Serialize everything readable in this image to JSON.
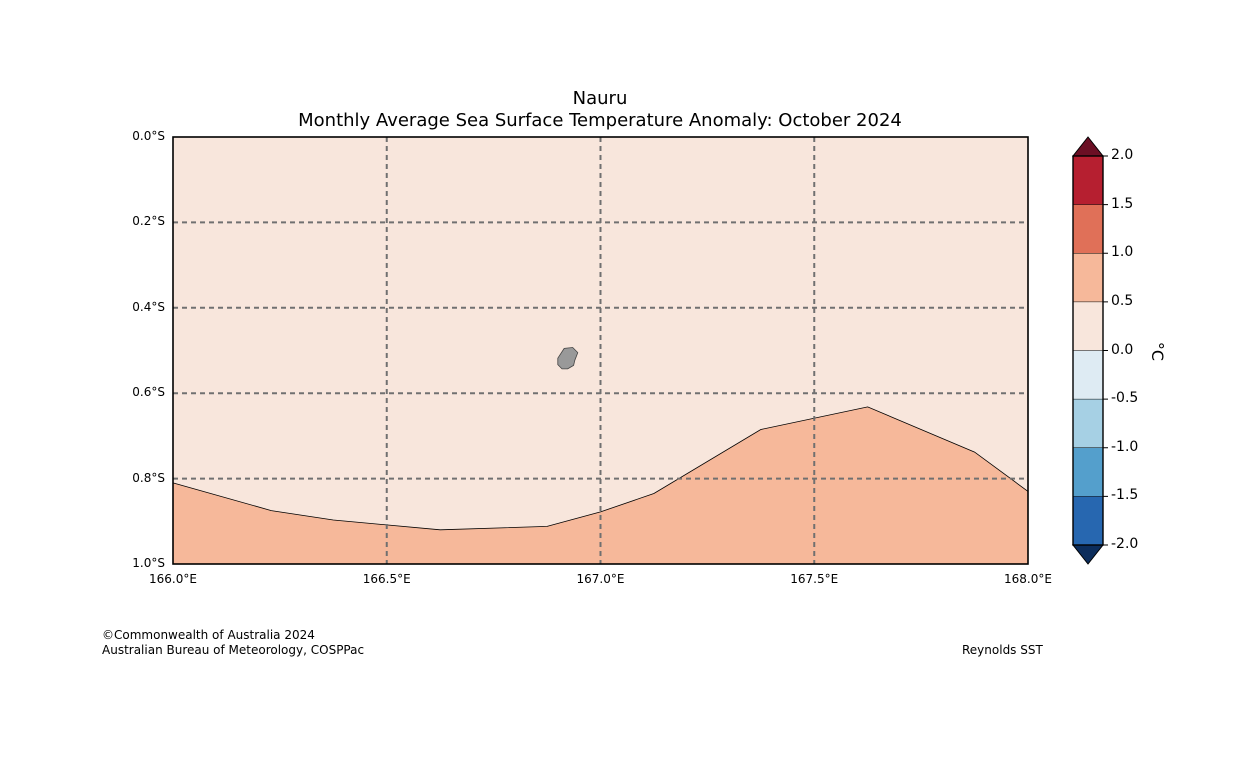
{
  "title": {
    "line1": "Nauru",
    "line2": "Monthly Average Sea Surface Temperature Anomaly: October 2024"
  },
  "map": {
    "lon_range": [
      166.0,
      168.0
    ],
    "lat_range": [
      0.0,
      -1.0
    ],
    "lon_ticks": [
      {
        "value": 166.0,
        "label": "166.0°E"
      },
      {
        "value": 166.5,
        "label": "166.5°E"
      },
      {
        "value": 167.0,
        "label": "167.0°E"
      },
      {
        "value": 167.5,
        "label": "167.5°E"
      },
      {
        "value": 168.0,
        "label": "168.0°E"
      }
    ],
    "lat_ticks": [
      {
        "value": 0.0,
        "label": "0.0°S"
      },
      {
        "value": -0.2,
        "label": "0.2°S"
      },
      {
        "value": -0.4,
        "label": "0.4°S"
      },
      {
        "value": -0.6,
        "label": "0.6°S"
      },
      {
        "value": -0.8,
        "label": "0.8°S"
      },
      {
        "value": -1.0,
        "label": "1.0°S"
      }
    ],
    "base_anomaly_color": "#f8e6dc",
    "warm_region_color": "#f6b89a",
    "land_color": "#999999",
    "gridline_color": "#707070",
    "warm_region_boundary": [
      {
        "lon": 166.0,
        "lat": -0.81
      },
      {
        "lon": 166.23,
        "lat": -0.875
      },
      {
        "lon": 166.375,
        "lat": -0.897
      },
      {
        "lon": 166.625,
        "lat": -0.92
      },
      {
        "lon": 166.875,
        "lat": -0.912
      },
      {
        "lon": 167.0,
        "lat": -0.878
      },
      {
        "lon": 167.125,
        "lat": -0.835
      },
      {
        "lon": 167.375,
        "lat": -0.685
      },
      {
        "lon": 167.625,
        "lat": -0.632
      },
      {
        "lon": 167.875,
        "lat": -0.738
      },
      {
        "lon": 168.0,
        "lat": -0.83
      }
    ],
    "island_outline": [
      {
        "lon": 166.915,
        "lat": -0.495
      },
      {
        "lon": 166.935,
        "lat": -0.493
      },
      {
        "lon": 166.947,
        "lat": -0.505
      },
      {
        "lon": 166.94,
        "lat": -0.523
      },
      {
        "lon": 166.937,
        "lat": -0.535
      },
      {
        "lon": 166.923,
        "lat": -0.543
      },
      {
        "lon": 166.91,
        "lat": -0.543
      },
      {
        "lon": 166.9,
        "lat": -0.533
      },
      {
        "lon": 166.9,
        "lat": -0.518
      }
    ]
  },
  "colorbar": {
    "unit": "°C",
    "ticks": [
      "2.0",
      "1.5",
      "1.0",
      "0.5",
      "0.0",
      "-0.5",
      "-1.0",
      "-1.5",
      "-2.0"
    ],
    "over_color": "#6b0f24",
    "under_color": "#0c2d5c",
    "bins": [
      {
        "from": 1.5,
        "to": 2.0,
        "color": "#b61f30"
      },
      {
        "from": 1.0,
        "to": 1.5,
        "color": "#e07058"
      },
      {
        "from": 0.5,
        "to": 1.0,
        "color": "#f6b89a"
      },
      {
        "from": 0.0,
        "to": 0.5,
        "color": "#f8e6dc"
      },
      {
        "from": -0.5,
        "to": 0.0,
        "color": "#deebf3"
      },
      {
        "from": -1.0,
        "to": -0.5,
        "color": "#a6d0e4"
      },
      {
        "from": -1.5,
        "to": -1.0,
        "color": "#549fcc"
      },
      {
        "from": -2.0,
        "to": -1.5,
        "color": "#2767b0"
      }
    ]
  },
  "footer": {
    "copyright": "©Commonwealth of Australia 2024",
    "agency": "Australian Bureau of Meteorology, COSPPac",
    "source": "Reynolds SST"
  }
}
